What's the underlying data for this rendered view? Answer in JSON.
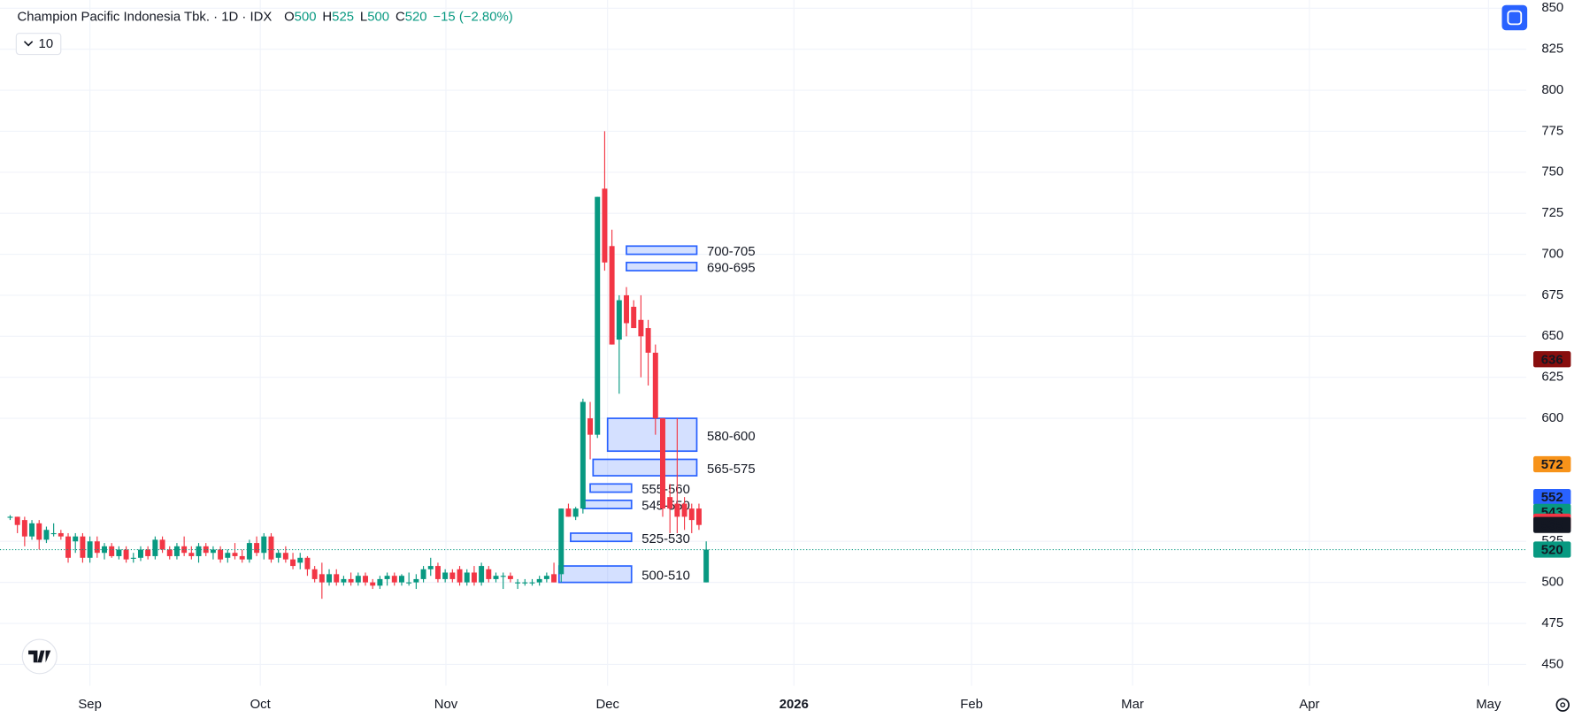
{
  "chart_data": {
    "type": "candlestick",
    "title": "Champion Pacific Indonesia Tbk. · 1D · IDX",
    "legend": [
      {
        "label": "O",
        "value": 500
      },
      {
        "label": "H",
        "value": 525
      },
      {
        "label": "L",
        "value": 500
      },
      {
        "label": "C",
        "value": 520
      }
    ],
    "change": "−15 (−2.80%)",
    "indicator": "10",
    "up_color": "#089981",
    "down_color": "#f23645",
    "ohlc": [
      [
        540,
        541,
        538,
        540
      ],
      [
        540,
        540,
        530,
        535
      ],
      [
        538,
        540,
        522,
        528
      ],
      [
        528,
        538,
        526,
        536
      ],
      [
        536,
        538,
        520,
        526
      ],
      [
        526,
        534,
        524,
        532
      ],
      [
        530,
        536,
        528,
        530
      ],
      [
        530,
        532,
        526,
        528
      ],
      [
        528,
        530,
        512,
        515
      ],
      [
        525,
        530,
        518,
        528
      ],
      [
        528,
        530,
        512,
        515
      ],
      [
        515,
        528,
        512,
        525
      ],
      [
        525,
        528,
        515,
        518
      ],
      [
        518,
        524,
        514,
        522
      ],
      [
        522,
        524,
        515,
        516
      ],
      [
        516,
        522,
        514,
        520
      ],
      [
        520,
        522,
        512,
        514
      ],
      [
        515,
        518,
        512,
        515
      ],
      [
        515,
        522,
        513,
        520
      ],
      [
        520,
        522,
        514,
        516
      ],
      [
        516,
        528,
        514,
        526
      ],
      [
        526,
        528,
        518,
        520
      ],
      [
        520,
        522,
        514,
        516
      ],
      [
        516,
        524,
        514,
        522
      ],
      [
        522,
        528,
        516,
        518
      ],
      [
        518,
        522,
        514,
        516
      ],
      [
        516,
        524,
        512,
        522
      ],
      [
        522,
        524,
        516,
        518
      ],
      [
        518,
        522,
        514,
        520
      ],
      [
        520,
        522,
        512,
        514
      ],
      [
        515,
        520,
        512,
        518
      ],
      [
        518,
        524,
        514,
        516
      ],
      [
        516,
        520,
        512,
        514
      ],
      [
        514,
        526,
        512,
        524
      ],
      [
        524,
        528,
        516,
        518
      ],
      [
        518,
        530,
        514,
        528
      ],
      [
        528,
        530,
        512,
        514
      ],
      [
        515,
        520,
        512,
        518
      ],
      [
        518,
        522,
        512,
        514
      ],
      [
        514,
        518,
        508,
        510
      ],
      [
        512,
        518,
        508,
        515
      ],
      [
        515,
        516,
        504,
        508
      ],
      [
        508,
        510,
        500,
        502
      ],
      [
        505,
        512,
        490,
        500
      ],
      [
        500,
        508,
        498,
        505
      ],
      [
        505,
        508,
        498,
        500
      ],
      [
        500,
        504,
        498,
        502
      ],
      [
        502,
        506,
        498,
        500
      ],
      [
        500,
        506,
        498,
        504
      ],
      [
        504,
        506,
        498,
        500
      ],
      [
        500,
        502,
        496,
        498
      ],
      [
        498,
        504,
        496,
        502
      ],
      [
        502,
        506,
        498,
        504
      ],
      [
        504,
        506,
        498,
        500
      ],
      [
        500,
        505,
        498,
        504
      ],
      [
        500,
        506,
        498,
        500
      ],
      [
        500,
        505,
        496,
        502
      ],
      [
        502,
        510,
        500,
        508
      ],
      [
        508,
        515,
        504,
        510
      ],
      [
        510,
        512,
        500,
        502
      ],
      [
        502,
        508,
        500,
        506
      ],
      [
        506,
        508,
        500,
        502
      ],
      [
        508,
        510,
        498,
        500
      ],
      [
        500,
        508,
        498,
        506
      ],
      [
        506,
        510,
        498,
        500
      ],
      [
        500,
        512,
        498,
        510
      ],
      [
        508,
        510,
        500,
        502
      ],
      [
        502,
        506,
        500,
        504
      ],
      [
        504,
        506,
        496,
        504
      ],
      [
        504,
        506,
        500,
        502
      ],
      [
        500,
        502,
        496,
        500
      ],
      [
        500,
        502,
        498,
        500
      ],
      [
        500,
        502,
        498,
        500
      ],
      [
        500,
        504,
        498,
        502
      ],
      [
        502,
        506,
        500,
        504
      ],
      [
        505,
        512,
        500,
        500
      ],
      [
        505,
        545,
        500,
        545
      ],
      [
        545,
        548,
        540,
        540
      ],
      [
        540,
        546,
        538,
        545
      ],
      [
        545,
        612,
        542,
        610
      ],
      [
        600,
        610,
        575,
        590
      ],
      [
        590,
        735,
        588,
        735
      ],
      [
        740,
        775,
        690,
        695
      ],
      [
        705,
        715,
        645,
        645
      ],
      [
        648,
        675,
        615,
        672
      ],
      [
        675,
        680,
        650,
        658
      ],
      [
        668,
        672,
        655,
        655
      ],
      [
        660,
        675,
        625,
        650
      ],
      [
        655,
        660,
        620,
        640
      ],
      [
        640,
        645,
        590,
        600
      ],
      [
        600,
        600,
        540,
        545
      ],
      [
        552,
        560,
        530,
        545
      ],
      [
        548,
        600,
        530,
        540
      ],
      [
        548,
        552,
        532,
        540
      ],
      [
        545,
        548,
        530,
        538
      ],
      [
        545,
        548,
        532,
        535
      ],
      [
        500,
        525,
        500,
        520
      ]
    ],
    "xlim": [
      -1.4,
      209.1
    ],
    "xticks": [
      {
        "value": 11,
        "label": "Sep"
      },
      {
        "value": 34.5,
        "label": "Oct"
      },
      {
        "value": 60.1,
        "label": "Nov"
      },
      {
        "value": 82.4,
        "label": "Dec"
      },
      {
        "value": 108.1,
        "label": "2026",
        "bold": true
      },
      {
        "value": 132.6,
        "label": "Feb"
      },
      {
        "value": 154.8,
        "label": "Mar"
      },
      {
        "value": 179.2,
        "label": "Apr"
      },
      {
        "value": 203.9,
        "label": "May"
      }
    ],
    "ylim": [
      437,
      855
    ],
    "yticks": [
      450,
      475,
      500,
      525,
      600,
      625,
      650,
      675,
      700,
      725,
      750,
      775,
      800,
      825,
      850
    ],
    "grid": true,
    "zone_color": "#2962ff",
    "zones": [
      {
        "label": "700-705",
        "low": 700,
        "high": 705,
        "x": [
          85.0,
          94.7
        ]
      },
      {
        "label": "690-695",
        "low": 690,
        "high": 695,
        "x": [
          85.0,
          94.7
        ]
      },
      {
        "label": "580-600",
        "low": 580,
        "high": 600,
        "x": [
          82.4,
          94.7
        ]
      },
      {
        "label": "565-575",
        "low": 565,
        "high": 575,
        "x": [
          80.4,
          94.7
        ]
      },
      {
        "label": "555-560",
        "low": 555,
        "high": 560,
        "x": [
          80.0,
          85.7
        ]
      },
      {
        "label": "545-550",
        "low": 545,
        "high": 550,
        "x": [
          79.0,
          85.7
        ]
      },
      {
        "label": "525-530",
        "low": 525,
        "high": 530,
        "x": [
          77.3,
          85.7
        ]
      },
      {
        "label": "500-510",
        "low": 500,
        "high": 510,
        "x": [
          75.7,
          85.7
        ]
      }
    ],
    "price_markers": [
      {
        "value": 636,
        "color": "#880e0e"
      },
      {
        "value": 572,
        "color": "#f7931a"
      },
      {
        "value": 552,
        "color": "#2962ff"
      },
      {
        "value": 543,
        "color": "#089981"
      },
      {
        "value": 537,
        "color": "#f23645"
      },
      {
        "value": 535,
        "color": "#131722"
      },
      {
        "value": 520,
        "color": "#089981"
      }
    ]
  }
}
